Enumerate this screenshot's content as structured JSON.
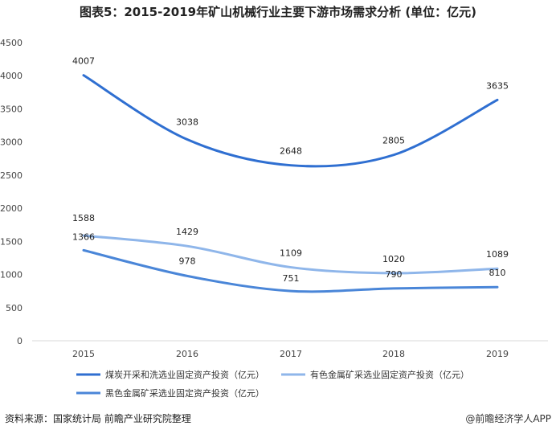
{
  "title": "图表5：2015-2019年矿山机械行业主要下游市场需求分析 (单位：亿元)",
  "source": "资料来源：国家统计局 前瞻产业研究院整理",
  "watermark": "@前瞻经济学人APP",
  "colors": {
    "series": [
      "#2f6fd1",
      "#8fb6ea",
      "#4a86d8"
    ],
    "axis_text": "#444444",
    "grid": "#d9d9d9"
  },
  "chart_data": {
    "type": "line",
    "x": [
      "2015",
      "2016",
      "2017",
      "2018",
      "2019"
    ],
    "ylim": [
      0,
      4500
    ],
    "yticks": [
      0,
      500,
      1000,
      1500,
      2000,
      2500,
      3000,
      3500,
      4000,
      4500
    ],
    "grid": false,
    "legend_position": "bottom",
    "series": [
      {
        "name": "煤炭开采和洗选业固定资产投资（亿元）",
        "values": [
          4007,
          3038,
          2648,
          2805,
          3635
        ]
      },
      {
        "name": "有色金属矿采选业固定资产投资（亿元）",
        "values": [
          1588,
          1429,
          1109,
          1020,
          1089
        ]
      },
      {
        "name": "黑色金属矿采选业固定资产投资（亿元）",
        "values": [
          1366,
          978,
          751,
          790,
          810
        ]
      }
    ]
  }
}
